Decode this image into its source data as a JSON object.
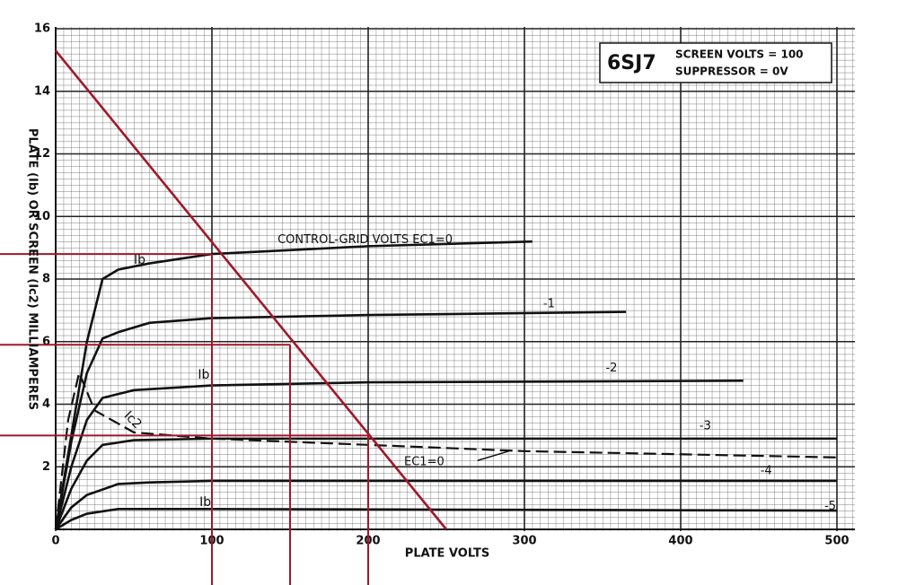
{
  "chart_data": {
    "type": "line",
    "title": "6SJ7",
    "subtitle": [
      "SCREEN VOLTS = 100",
      "SUPPRESSOR = 0V"
    ],
    "x_label": "PLATE VOLTS",
    "y_label": "PLATE (Ib) OR SCREEN (Ic2) MILLIAMPERES",
    "xlim": [
      0,
      500
    ],
    "ylim": [
      0,
      16
    ],
    "xticks": [
      0,
      100,
      200,
      300,
      400,
      500
    ],
    "yticks": [
      2,
      4,
      6,
      8,
      10,
      12,
      14,
      16
    ],
    "grid": true,
    "series": [
      {
        "name": "CONTROL-GRID VOLTS EC1=0",
        "color": "#111111",
        "x": [
          0,
          10,
          20,
          30,
          40,
          60,
          100,
          200,
          305
        ],
        "values": [
          0,
          3,
          6,
          8,
          8.3,
          8.5,
          8.8,
          9.05,
          9.2
        ]
      },
      {
        "name": "-1",
        "color": "#111111",
        "x": [
          0,
          10,
          20,
          30,
          40,
          60,
          100,
          200,
          365
        ],
        "values": [
          0,
          2.8,
          5,
          6.1,
          6.3,
          6.6,
          6.75,
          6.85,
          6.95
        ]
      },
      {
        "name": "-2",
        "color": "#111111",
        "x": [
          0,
          10,
          20,
          30,
          50,
          100,
          200,
          440
        ],
        "values": [
          0,
          2,
          3.5,
          4.2,
          4.45,
          4.6,
          4.7,
          4.75
        ]
      },
      {
        "name": "-3",
        "color": "#111111",
        "x": [
          0,
          10,
          20,
          30,
          50,
          100,
          200,
          500
        ],
        "values": [
          0,
          1.3,
          2.2,
          2.7,
          2.85,
          2.9,
          2.9,
          2.9
        ]
      },
      {
        "name": "-4",
        "color": "#111111",
        "x": [
          0,
          10,
          20,
          40,
          60,
          100,
          500
        ],
        "values": [
          0,
          0.7,
          1.1,
          1.45,
          1.5,
          1.55,
          1.55
        ]
      },
      {
        "name": "-5",
        "color": "#111111",
        "x": [
          0,
          10,
          20,
          40,
          100,
          500
        ],
        "values": [
          0,
          0.3,
          0.5,
          0.65,
          0.65,
          0.6
        ]
      },
      {
        "name": "EC1=0",
        "color": "#111111",
        "dashed": true,
        "x": [
          0,
          8,
          15,
          25,
          50,
          100,
          200,
          300,
          500
        ],
        "values": [
          0,
          3.5,
          5,
          3.8,
          3.1,
          2.9,
          2.7,
          2.5,
          2.3
        ]
      },
      {
        "color": "#a0182a",
        "x": [
          0,
          250
        ],
        "values": [
          15.3,
          0
        ]
      }
    ],
    "operating_points": {
      "color": "#a0182a",
      "x": [
        100,
        150,
        200
      ],
      "values": [
        8.8,
        5.9,
        3.0
      ]
    },
    "annotations": [
      "Ib",
      "Ic2",
      "Ib",
      "Ib"
    ]
  }
}
